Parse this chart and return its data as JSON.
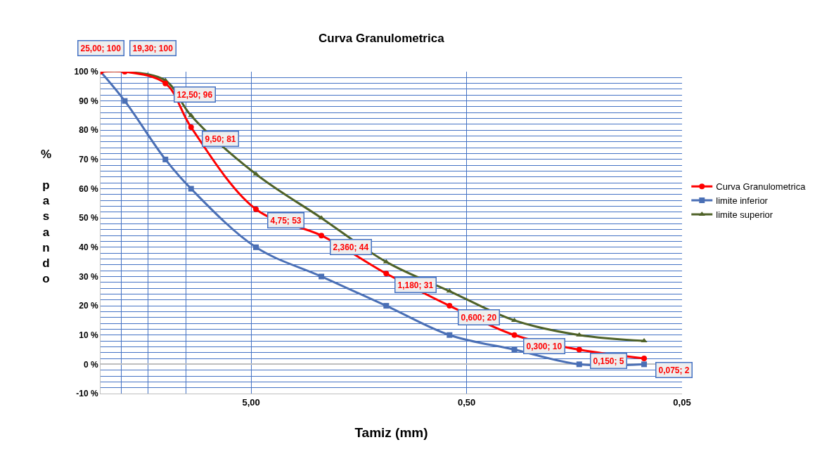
{
  "chart_data": {
    "type": "line",
    "title": "Curva Granulometrica",
    "xlabel": "Tamiz (mm)",
    "ylabel": "% pasando",
    "log": "x",
    "xlim": [
      25,
      0.05
    ],
    "xticks": [
      {
        "value": 5,
        "label": "5,00"
      },
      {
        "value": 0.5,
        "label": "0,50"
      },
      {
        "value": 0.05,
        "label": "0,05"
      }
    ],
    "ylim": [
      -10,
      100
    ],
    "yticks": [
      {
        "value": -10,
        "label": "-10 %"
      },
      {
        "value": 0,
        "label": "0 %"
      },
      {
        "value": 10,
        "label": "10 %"
      },
      {
        "value": 20,
        "label": "20 %"
      },
      {
        "value": 30,
        "label": "30 %"
      },
      {
        "value": 40,
        "label": "40 %"
      },
      {
        "value": 50,
        "label": "50 %"
      },
      {
        "value": 60,
        "label": "60 %"
      },
      {
        "value": 70,
        "label": "70 %"
      },
      {
        "value": 80,
        "label": "80 %"
      },
      {
        "value": 90,
        "label": "90 %"
      },
      {
        "value": 100,
        "label": "100 %"
      }
    ],
    "x": [
      25,
      19.3,
      12.5,
      9.5,
      4.75,
      2.36,
      1.18,
      0.6,
      0.3,
      0.15,
      0.075
    ],
    "grid": true,
    "legend": "right",
    "series": [
      {
        "name": "Curva Granulometrica",
        "color": "#ff0000",
        "marker": "circle",
        "values": [
          100,
          100,
          96,
          81,
          53,
          44,
          31,
          20,
          10,
          5,
          2
        ],
        "value_labels": [
          "25,00; 100",
          "19,30; 100",
          "12,50; 96",
          "9,50; 81",
          "4,75; 53",
          "2,360; 44",
          "1,180; 31",
          "0,600; 20",
          "0,300; 10",
          "0,150; 5",
          "0,075; 2"
        ]
      },
      {
        "name": "limite inferior",
        "color": "#4a6fb5",
        "marker": "square",
        "values": [
          100,
          90,
          70,
          60,
          40,
          30,
          20,
          10,
          5,
          0,
          0
        ]
      },
      {
        "name": "limite superior",
        "color": "#4f6228",
        "marker": "triangle",
        "values": [
          100,
          100,
          97,
          85,
          65,
          50,
          35,
          25,
          15,
          10,
          8
        ]
      }
    ]
  }
}
